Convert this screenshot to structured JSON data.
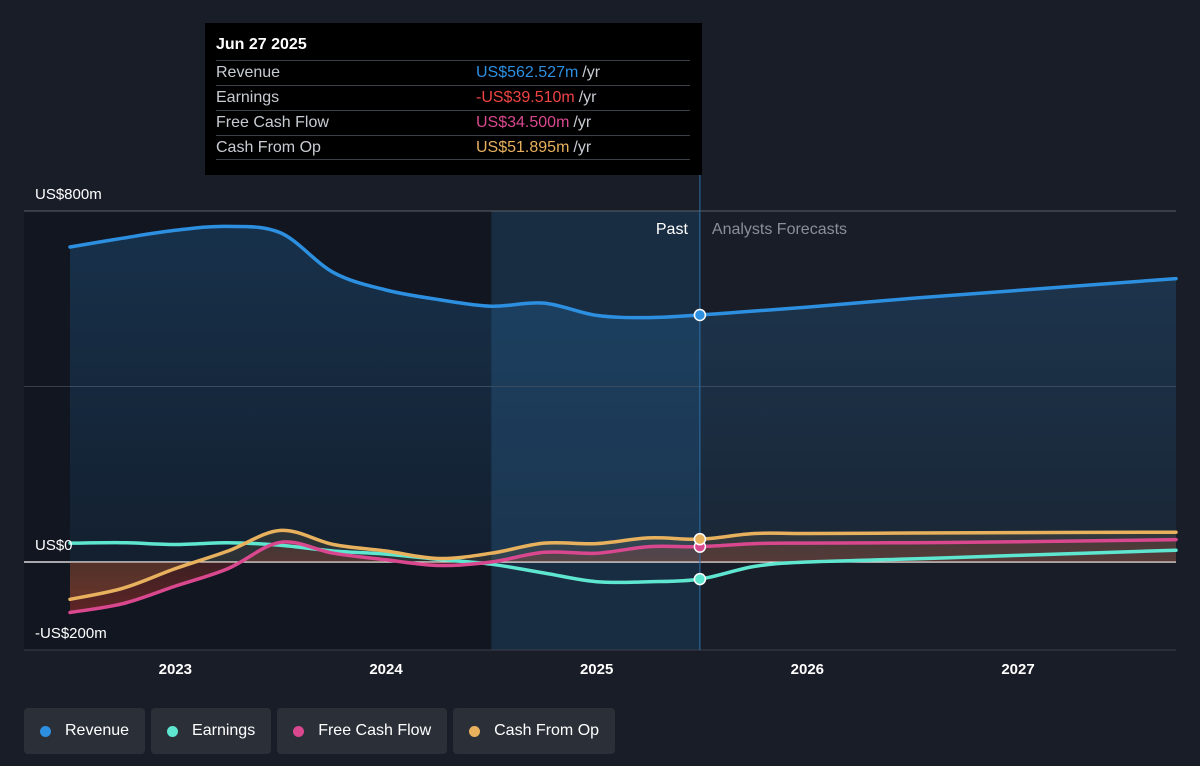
{
  "tooltip": {
    "date": "Jun 27 2025",
    "rows": [
      {
        "label": "Revenue",
        "value": "US$562.527m",
        "unit": "/yr",
        "color": "#2d8fe0"
      },
      {
        "label": "Earnings",
        "value": "-US$39.510m",
        "unit": "/yr",
        "color": "#ef4444"
      },
      {
        "label": "Free Cash Flow",
        "value": "US$34.500m",
        "unit": "/yr",
        "color": "#d9488f"
      },
      {
        "label": "Cash From Op",
        "value": "US$51.895m",
        "unit": "/yr",
        "color": "#e8b15e"
      }
    ]
  },
  "regions": {
    "past_label": "Past",
    "forecast_label": "Analysts Forecasts"
  },
  "legend": [
    {
      "label": "Revenue",
      "color": "#2d8fe0"
    },
    {
      "label": "Earnings",
      "color": "#5ee6d0"
    },
    {
      "label": "Free Cash Flow",
      "color": "#d9488f"
    },
    {
      "label": "Cash From Op",
      "color": "#e8b15e"
    }
  ],
  "chart_data": {
    "type": "line",
    "y_unit_labels": [
      "US$800m",
      "US$0",
      "-US$200m"
    ],
    "ylim": [
      -200,
      800
    ],
    "xlim": [
      2022.5,
      2027.75
    ],
    "x_ticks": [
      "2023",
      "2024",
      "2025",
      "2026",
      "2027"
    ],
    "highlight_start": 2024.5,
    "divider_date": 2025.49,
    "series": [
      {
        "name": "Revenue",
        "color": "#2d8fe0",
        "fill": true,
        "points": [
          [
            2022.5,
            718
          ],
          [
            2022.75,
            738
          ],
          [
            2023.0,
            756
          ],
          [
            2023.25,
            765
          ],
          [
            2023.5,
            750
          ],
          [
            2023.75,
            660
          ],
          [
            2024.0,
            620
          ],
          [
            2024.25,
            598
          ],
          [
            2024.5,
            583
          ],
          [
            2024.75,
            590
          ],
          [
            2025.0,
            562
          ],
          [
            2025.25,
            557
          ],
          [
            2025.49,
            563
          ],
          [
            2025.75,
            572
          ],
          [
            2026.0,
            581
          ],
          [
            2026.5,
            601
          ],
          [
            2027.0,
            619
          ],
          [
            2027.75,
            646
          ]
        ]
      },
      {
        "name": "Earnings",
        "color": "#5ee6d0",
        "fill": false,
        "points": [
          [
            2022.5,
            43
          ],
          [
            2022.75,
            44
          ],
          [
            2023.0,
            40
          ],
          [
            2023.25,
            44
          ],
          [
            2023.5,
            38
          ],
          [
            2023.75,
            25
          ],
          [
            2024.0,
            18
          ],
          [
            2024.25,
            6
          ],
          [
            2024.5,
            -5
          ],
          [
            2024.75,
            -25
          ],
          [
            2025.0,
            -45
          ],
          [
            2025.25,
            -45
          ],
          [
            2025.49,
            -39
          ],
          [
            2025.75,
            -10
          ],
          [
            2026.0,
            0
          ],
          [
            2026.5,
            7
          ],
          [
            2027.0,
            15
          ],
          [
            2027.75,
            27
          ]
        ]
      },
      {
        "name": "Free Cash Flow",
        "color": "#d9488f",
        "fill": true,
        "points": [
          [
            2022.5,
            -115
          ],
          [
            2022.75,
            -95
          ],
          [
            2023.0,
            -55
          ],
          [
            2023.25,
            -15
          ],
          [
            2023.5,
            45
          ],
          [
            2023.75,
            20
          ],
          [
            2024.0,
            5
          ],
          [
            2024.25,
            -8
          ],
          [
            2024.5,
            0
          ],
          [
            2024.75,
            22
          ],
          [
            2025.0,
            20
          ],
          [
            2025.25,
            35
          ],
          [
            2025.49,
            35
          ],
          [
            2025.75,
            42
          ],
          [
            2026.0,
            43
          ],
          [
            2026.5,
            44
          ],
          [
            2027.0,
            46
          ],
          [
            2027.75,
            51
          ]
        ]
      },
      {
        "name": "Cash From Op",
        "color": "#e8b15e",
        "fill": true,
        "points": [
          [
            2022.5,
            -85
          ],
          [
            2022.75,
            -60
          ],
          [
            2023.0,
            -15
          ],
          [
            2023.25,
            25
          ],
          [
            2023.5,
            72
          ],
          [
            2023.75,
            40
          ],
          [
            2024.0,
            25
          ],
          [
            2024.25,
            8
          ],
          [
            2024.5,
            20
          ],
          [
            2024.75,
            43
          ],
          [
            2025.0,
            42
          ],
          [
            2025.25,
            55
          ],
          [
            2025.49,
            52
          ],
          [
            2025.75,
            65
          ],
          [
            2026.0,
            65
          ],
          [
            2026.5,
            66
          ],
          [
            2027.0,
            67
          ],
          [
            2027.75,
            68
          ]
        ]
      }
    ]
  }
}
